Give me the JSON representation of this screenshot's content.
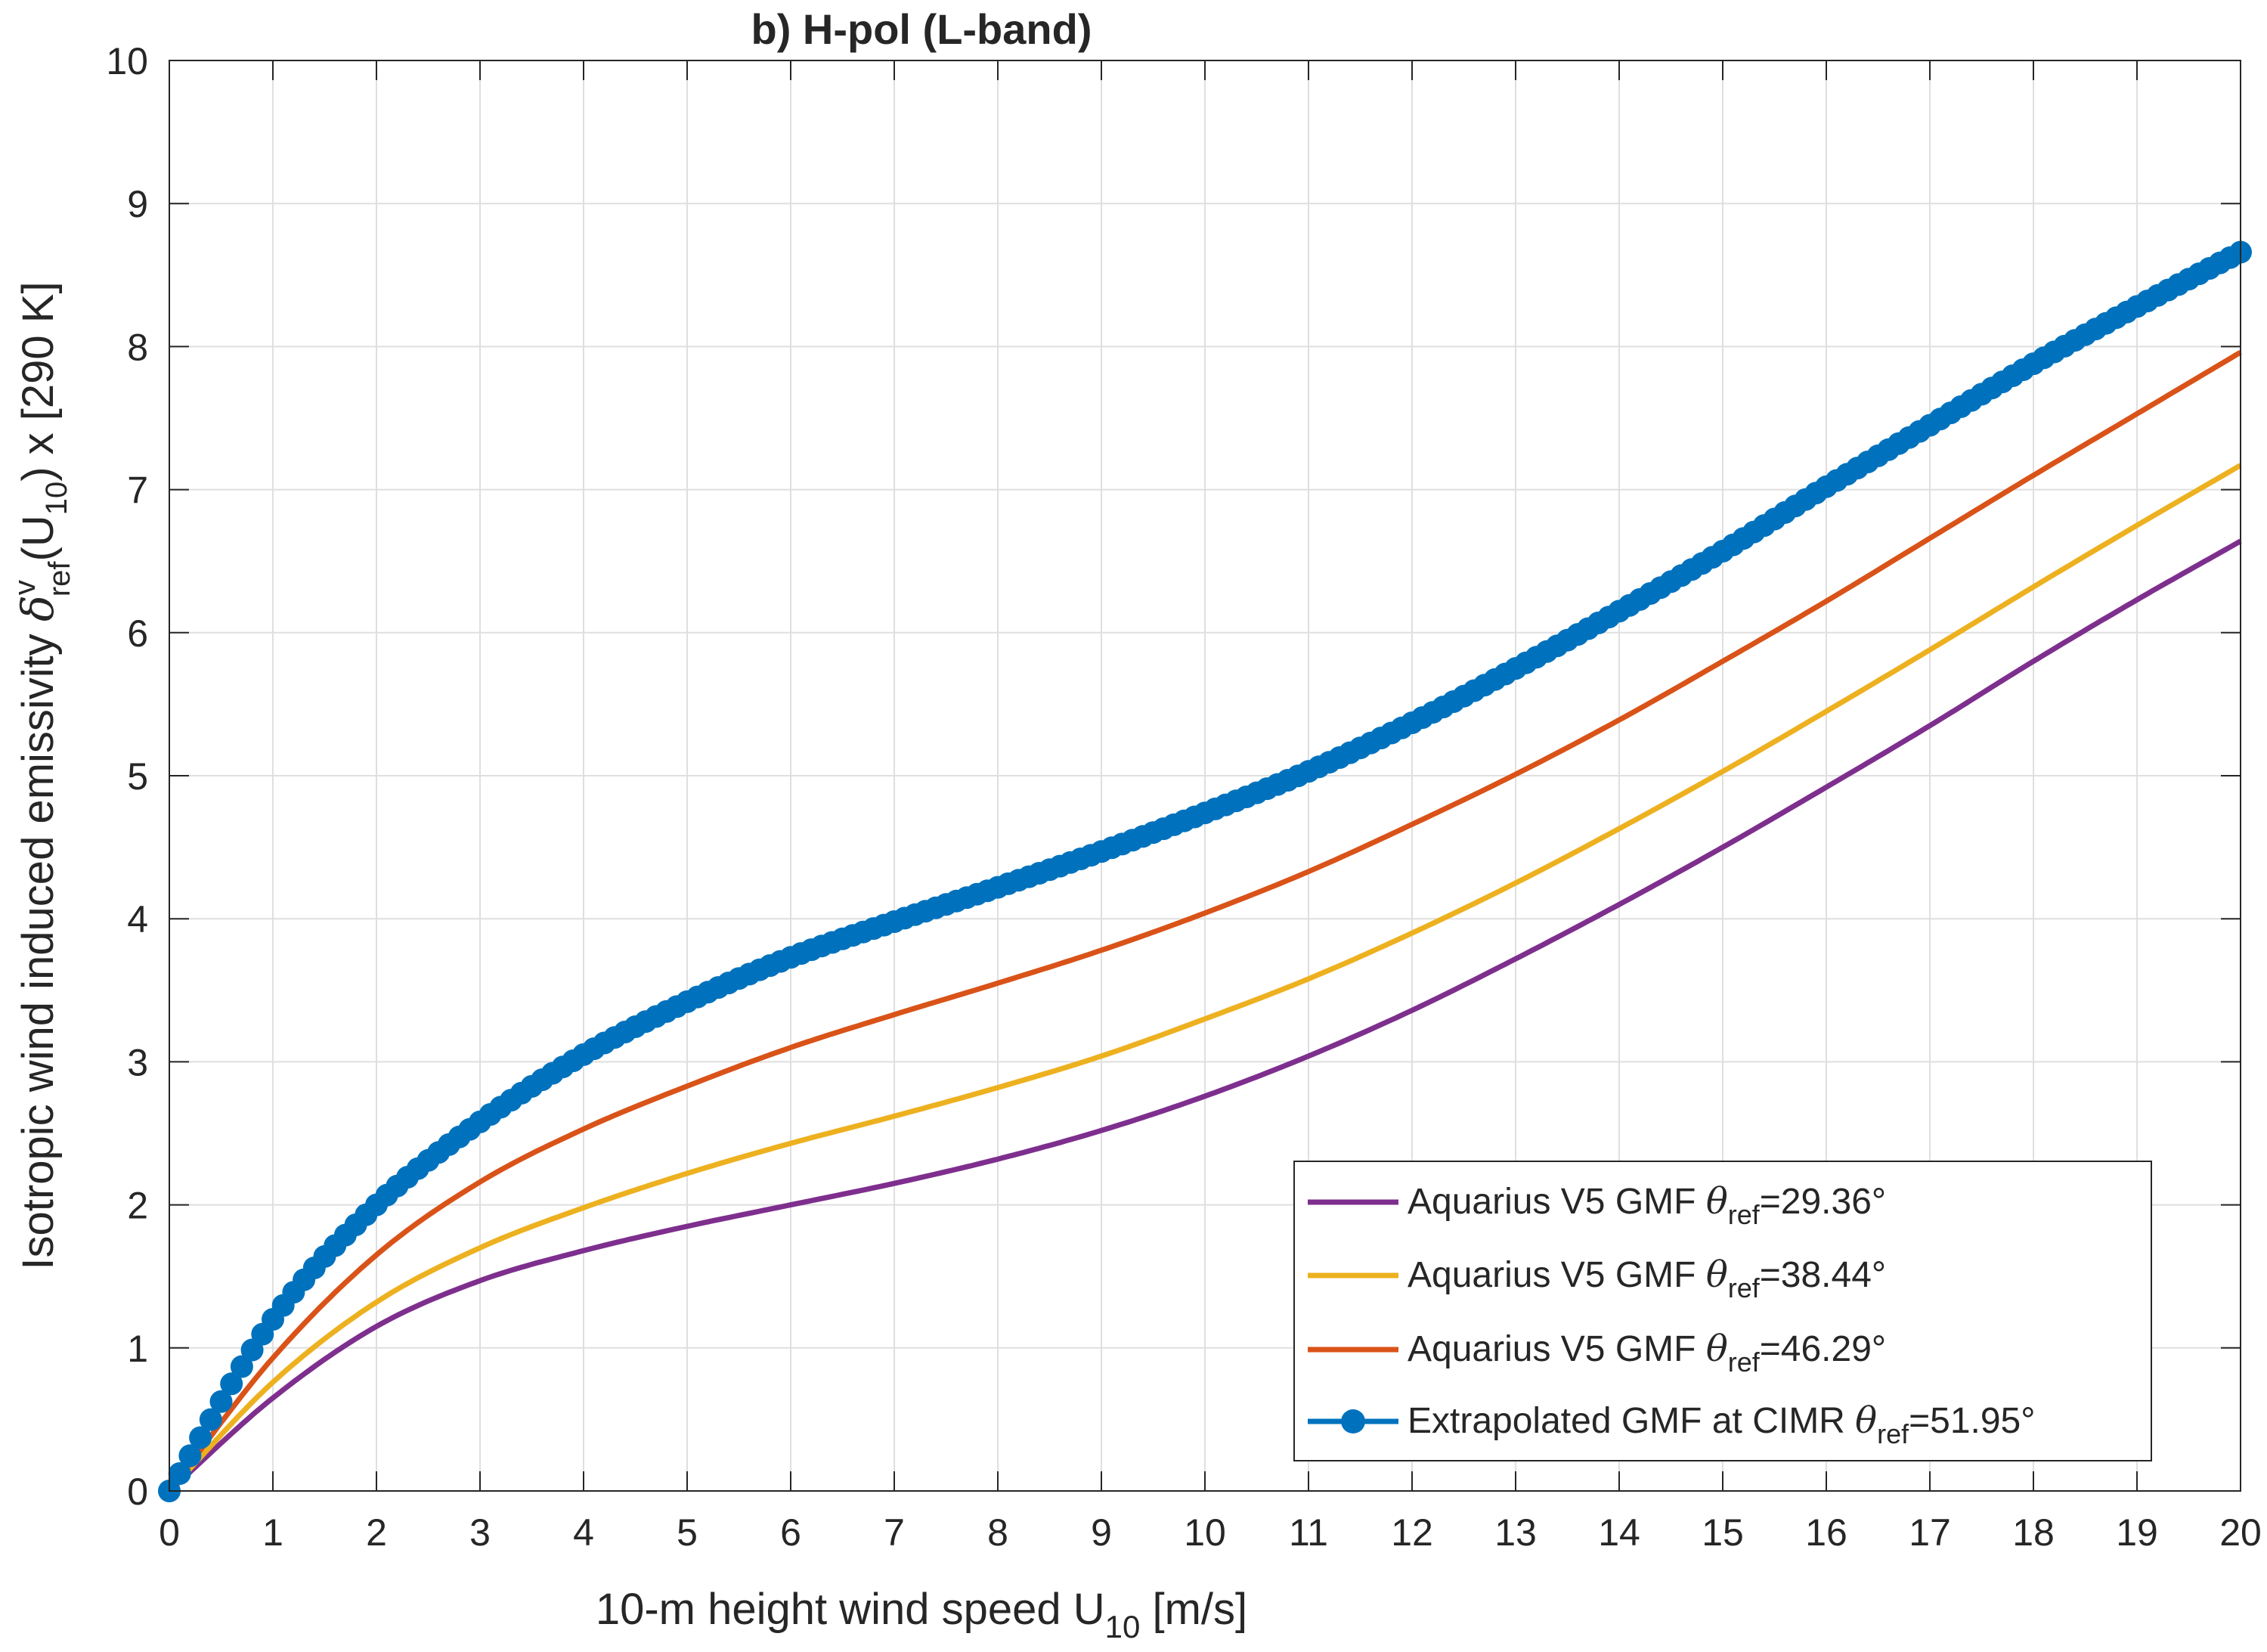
{
  "chart_data": {
    "type": "line",
    "title": "b) H-pol (L-band)",
    "xlabel": {
      "main": "10-m height wind speed U",
      "sub": "10",
      "tail": " [m/s]"
    },
    "ylabel": {
      "p1": "Isotropic wind induced emissivity ",
      "delta": "δ",
      "sup": "v",
      "sub1": "ref",
      "p2": "(U",
      "sub2": "10",
      "p3": ") x [290 K]"
    },
    "xlim": [
      0,
      20
    ],
    "ylim": [
      0,
      10
    ],
    "xticks": [
      "0",
      "1",
      "2",
      "3",
      "4",
      "5",
      "6",
      "7",
      "8",
      "9",
      "10",
      "11",
      "12",
      "13",
      "14",
      "15",
      "16",
      "17",
      "18",
      "19",
      "20"
    ],
    "yticks": [
      "0",
      "1",
      "2",
      "3",
      "4",
      "5",
      "6",
      "7",
      "8",
      "9",
      "10"
    ],
    "grid": true,
    "legend_position": "bottom-right",
    "x": [
      0,
      1,
      2,
      3,
      4,
      5,
      6,
      7,
      8,
      9,
      10,
      11,
      12,
      13,
      14,
      15,
      16,
      17,
      18,
      19,
      20
    ],
    "series": [
      {
        "name": "Aquarius V5 GMF θref=29.36°",
        "legend": {
          "pre": "Aquarius V5 GMF ",
          "theta": "θ",
          "sub": "ref",
          "post": "=29.36°"
        },
        "color": "#7E2F8E",
        "marker": false,
        "values": [
          0,
          0.65,
          1.15,
          1.47,
          1.68,
          1.85,
          2.0,
          2.15,
          2.32,
          2.52,
          2.76,
          3.04,
          3.36,
          3.72,
          4.1,
          4.5,
          4.92,
          5.35,
          5.8,
          6.23,
          6.64
        ]
      },
      {
        "name": "Aquarius V5 GMF θref=38.44°",
        "legend": {
          "pre": "Aquarius V5 GMF ",
          "theta": "θ",
          "sub": "ref",
          "post": "=38.44°"
        },
        "color": "#EDB120",
        "marker": false,
        "values": [
          0,
          0.76,
          1.32,
          1.7,
          1.98,
          2.22,
          2.43,
          2.62,
          2.82,
          3.04,
          3.3,
          3.58,
          3.9,
          4.25,
          4.63,
          5.03,
          5.45,
          5.88,
          6.32,
          6.75,
          7.17
        ]
      },
      {
        "name": "Aquarius V5 GMF θref=46.29°",
        "legend": {
          "pre": "Aquarius V5 GMF ",
          "theta": "θ",
          "sub": "ref",
          "post": "=46.29°"
        },
        "color": "#D95319",
        "marker": false,
        "values": [
          0,
          0.93,
          1.65,
          2.16,
          2.53,
          2.83,
          3.1,
          3.33,
          3.55,
          3.78,
          4.04,
          4.33,
          4.66,
          5.01,
          5.39,
          5.8,
          6.22,
          6.66,
          7.1,
          7.53,
          7.96
        ]
      },
      {
        "name": "Extrapolated GMF at CIMR θref=51.95°",
        "legend": {
          "pre": "Extrapolated GMF at CIMR ",
          "theta": "θ",
          "sub": "ref",
          "post": "=51.95°"
        },
        "color": "#0072BD",
        "marker": true,
        "values": [
          0,
          1.2,
          2.0,
          2.58,
          3.05,
          3.42,
          3.73,
          3.98,
          4.22,
          4.47,
          4.74,
          5.03,
          5.37,
          5.75,
          6.15,
          6.57,
          7.02,
          7.45,
          7.88,
          8.28,
          8.66
        ]
      }
    ]
  }
}
